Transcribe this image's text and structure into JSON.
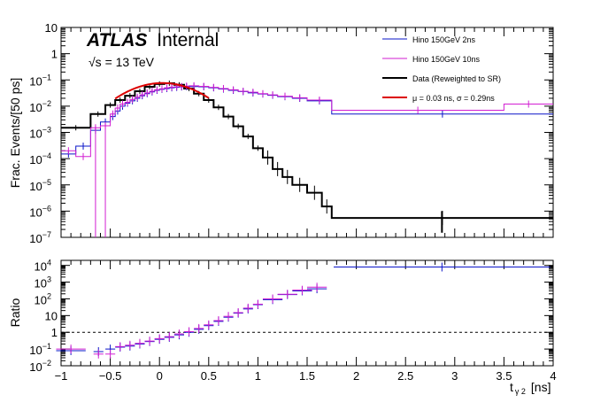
{
  "chart_data": {
    "type": "line",
    "atlas": {
      "brand": "ATLAS",
      "label": "Internal"
    },
    "energy_label": "√s = 13 TeV",
    "x_axis": {
      "label": "t",
      "label_sub": "γ 2",
      "label_unit": "[ns]",
      "range": [
        -1,
        4
      ],
      "ticks": [
        -1,
        -0.5,
        0,
        0.5,
        1,
        1.5,
        2,
        2.5,
        3,
        3.5,
        4
      ],
      "tick_labels": [
        "−1",
        "−0.5",
        "0",
        "0.5",
        "1",
        "1.5",
        "2",
        "2.5",
        "3",
        "3.5",
        "4"
      ]
    },
    "top_panel": {
      "ylabel": "Frac. Events/[50 ps]",
      "log_y": true,
      "ylim": [
        1e-07,
        10
      ],
      "y_ticks": [
        1e-07,
        1e-06,
        1e-05,
        0.0001,
        0.001,
        0.01,
        0.1,
        1,
        10
      ],
      "y_tick_labels": [
        {
          "base": "10",
          "exp": "−7"
        },
        {
          "base": "10",
          "exp": "−6"
        },
        {
          "base": "10",
          "exp": "−5"
        },
        {
          "base": "10",
          "exp": "−4"
        },
        {
          "base": "10",
          "exp": "−3"
        },
        {
          "base": "10",
          "exp": "−2"
        },
        {
          "base": "10",
          "exp": "−1"
        },
        {
          "base": "1",
          "exp": ""
        },
        {
          "base": "10",
          "exp": ""
        }
      ]
    },
    "bottom_panel": {
      "ylabel": "Ratio",
      "log_y": true,
      "ylim": [
        0.01,
        20000
      ],
      "y_ticks": [
        0.01,
        0.1,
        1,
        10,
        100,
        1000,
        10000
      ],
      "y_tick_labels": [
        {
          "base": "10",
          "exp": "−2"
        },
        {
          "base": "10",
          "exp": "−1"
        },
        {
          "base": "1",
          "exp": ""
        },
        {
          "base": "10",
          "exp": ""
        },
        {
          "base": "10",
          "exp": "2"
        },
        {
          "base": "10",
          "exp": "3"
        },
        {
          "base": "10",
          "exp": "4"
        }
      ],
      "reference_line": 1
    },
    "legend": {
      "position": "top-right",
      "entries": [
        {
          "label": "Hino 150GeV 2ns",
          "color": "#0a14c8"
        },
        {
          "label": "Hino 150GeV 10ns",
          "color": "#d21ed2"
        },
        {
          "label": "Data (Reweighted to SR)",
          "color": "#000000"
        },
        {
          "label": "μ = 0.03 ns,     σ = 0.29ns",
          "color": "#dc0000"
        }
      ]
    },
    "series": [
      {
        "name": "Data (Reweighted to SR)",
        "style": "step",
        "color": "#000000",
        "edges": [
          -1.0,
          -0.7,
          -0.55,
          -0.45,
          -0.35,
          -0.25,
          -0.15,
          -0.05,
          0.05,
          0.15,
          0.25,
          0.35,
          0.45,
          0.55,
          0.65,
          0.75,
          0.85,
          0.95,
          1.05,
          1.15,
          1.25,
          1.35,
          1.5,
          1.65,
          1.75,
          4.0
        ],
        "values": [
          0.0015,
          0.005,
          0.011,
          0.017,
          0.025,
          0.037,
          0.055,
          0.07,
          0.075,
          0.065,
          0.047,
          0.03,
          0.017,
          0.009,
          0.004,
          0.0017,
          0.0007,
          0.00025,
          0.00011,
          4e-05,
          2e-05,
          1e-05,
          5e-06,
          1.5e-06,
          5.5e-07
        ]
      },
      {
        "name": "Hino 150GeV 2ns",
        "style": "step",
        "color": "#0a14c8",
        "edges": [
          -1.0,
          -0.85,
          -0.7,
          -0.6,
          -0.5,
          -0.45,
          -0.4,
          -0.35,
          -0.3,
          -0.25,
          -0.2,
          -0.15,
          -0.1,
          -0.05,
          0.0,
          0.05,
          0.1,
          0.15,
          0.2,
          0.25,
          0.3,
          0.4,
          0.5,
          0.6,
          0.7,
          0.8,
          0.9,
          1.0,
          1.1,
          1.2,
          1.35,
          1.5,
          1.75,
          4.0
        ],
        "values": [
          0.00015,
          0.0003,
          0.0012,
          0.0025,
          0.004,
          0.0065,
          0.01,
          0.013,
          0.016,
          0.02,
          0.025,
          0.03,
          0.035,
          0.04,
          0.044,
          0.047,
          0.05,
          0.052,
          0.054,
          0.055,
          0.056,
          0.055,
          0.05,
          0.045,
          0.04,
          0.036,
          0.032,
          0.029,
          0.026,
          0.023,
          0.02,
          0.016,
          0.005
        ]
      },
      {
        "name": "Hino 150GeV 10ns",
        "style": "step",
        "color": "#d21ed2",
        "edges": [
          -1.0,
          -0.85,
          -0.7,
          -0.6,
          -0.5,
          -0.45,
          -0.4,
          -0.35,
          -0.3,
          -0.25,
          -0.2,
          -0.15,
          -0.1,
          -0.05,
          0.0,
          0.05,
          0.1,
          0.15,
          0.2,
          0.25,
          0.3,
          0.4,
          0.5,
          0.6,
          0.7,
          0.8,
          0.9,
          1.0,
          1.1,
          1.2,
          1.35,
          1.5,
          1.75,
          3.5,
          4.0
        ],
        "values": [
          0.0002,
          0.00012,
          0.0015,
          0.0018,
          0.005,
          0.0085,
          0.012,
          0.014,
          0.018,
          0.022,
          0.027,
          0.032,
          0.037,
          0.042,
          0.046,
          0.05,
          0.053,
          0.055,
          0.056,
          0.058,
          0.06,
          0.057,
          0.052,
          0.047,
          0.042,
          0.037,
          0.034,
          0.03,
          0.027,
          0.024,
          0.021,
          0.017,
          0.007,
          0.012
        ]
      },
      {
        "name": "μ = 0.03 ns,     σ = 0.29ns",
        "style": "gaussian",
        "color": "#dc0000",
        "mu": 0.03,
        "sigma": 0.29,
        "amplitude": 0.076,
        "x_range": [
          -0.45,
          0.5
        ]
      }
    ],
    "ratio_series": [
      {
        "name": "Hino 150GeV 2ns / Data",
        "color": "#0a14c8",
        "x": [
          -0.9,
          -0.62,
          -0.5,
          -0.4,
          -0.3,
          -0.2,
          -0.1,
          0.0,
          0.1,
          0.2,
          0.3,
          0.4,
          0.5,
          0.6,
          0.7,
          0.8,
          0.9,
          1.0,
          1.15,
          1.3,
          1.45,
          1.6,
          2.87
        ],
        "y": [
          0.08,
          0.07,
          0.1,
          0.13,
          0.15,
          0.2,
          0.28,
          0.38,
          0.5,
          0.7,
          1.0,
          1.5,
          2.5,
          4.5,
          8,
          14,
          25,
          45,
          90,
          180,
          300,
          400,
          8000
        ],
        "xerr": [
          0.15,
          0.05,
          0.05,
          0.05,
          0.05,
          0.05,
          0.05,
          0.05,
          0.05,
          0.05,
          0.05,
          0.05,
          0.05,
          0.05,
          0.05,
          0.05,
          0.05,
          0.05,
          0.1,
          0.1,
          0.1,
          0.1,
          1.1
        ]
      },
      {
        "name": "Hino 150GeV 10ns / Data",
        "color": "#d21ed2",
        "x": [
          -0.9,
          -0.62,
          -0.5,
          -0.4,
          -0.3,
          -0.2,
          -0.1,
          0.0,
          0.1,
          0.2,
          0.3,
          0.4,
          0.5,
          0.6,
          0.7,
          0.8,
          0.9,
          1.0,
          1.15,
          1.3,
          1.45,
          1.6
        ],
        "y": [
          0.1,
          0.05,
          0.05,
          0.14,
          0.17,
          0.22,
          0.3,
          0.42,
          0.55,
          0.8,
          1.1,
          1.7,
          2.8,
          5,
          9,
          15,
          28,
          48,
          100,
          190,
          330,
          500
        ],
        "xerr": [
          0.15,
          0.05,
          0.05,
          0.05,
          0.05,
          0.05,
          0.05,
          0.05,
          0.05,
          0.05,
          0.05,
          0.05,
          0.05,
          0.05,
          0.05,
          0.05,
          0.05,
          0.05,
          0.1,
          0.1,
          0.1,
          0.1
        ]
      }
    ]
  }
}
